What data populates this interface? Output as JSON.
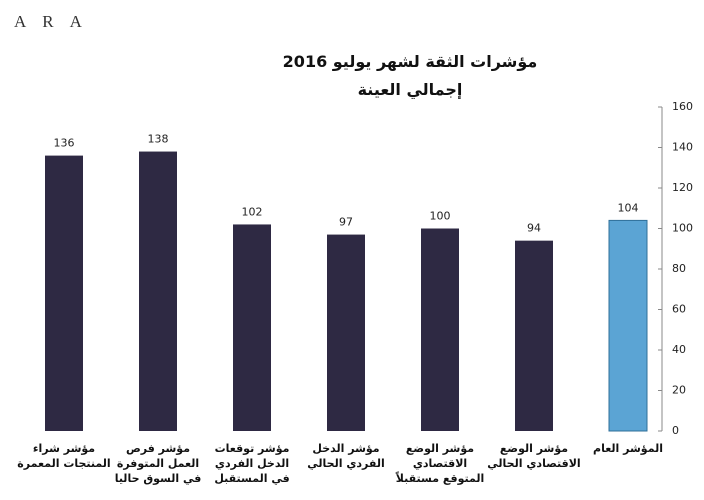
{
  "logo": "ARA",
  "chart_data": {
    "type": "bar",
    "title": "مؤشرات الثقة لشهر يوليو 2016",
    "subtitle": "إجمالي العينة",
    "categories": [
      "مؤشر شراء المنتجات المعمرة",
      "مؤشر فرص العمل المتوفرة في السوق حاليا",
      "مؤشر توقعات الدخل الفردي في المستقبل",
      "مؤشر الدخل الفردي الحالي",
      "مؤشر الوضع الاقتصادي المتوقع مستقبلاً",
      "مؤشر الوضع الاقتصادي الحالي",
      "المؤشر العام"
    ],
    "values": [
      136,
      138,
      102,
      97,
      100,
      94,
      104
    ],
    "colors": [
      "#2e2943",
      "#2e2943",
      "#2e2943",
      "#2e2943",
      "#2e2943",
      "#2e2943",
      "#5ba4d4"
    ],
    "ylim": [
      0,
      160
    ],
    "yticks": [
      0,
      20,
      40,
      60,
      80,
      100,
      120,
      140,
      160
    ],
    "axis_side": "right"
  }
}
